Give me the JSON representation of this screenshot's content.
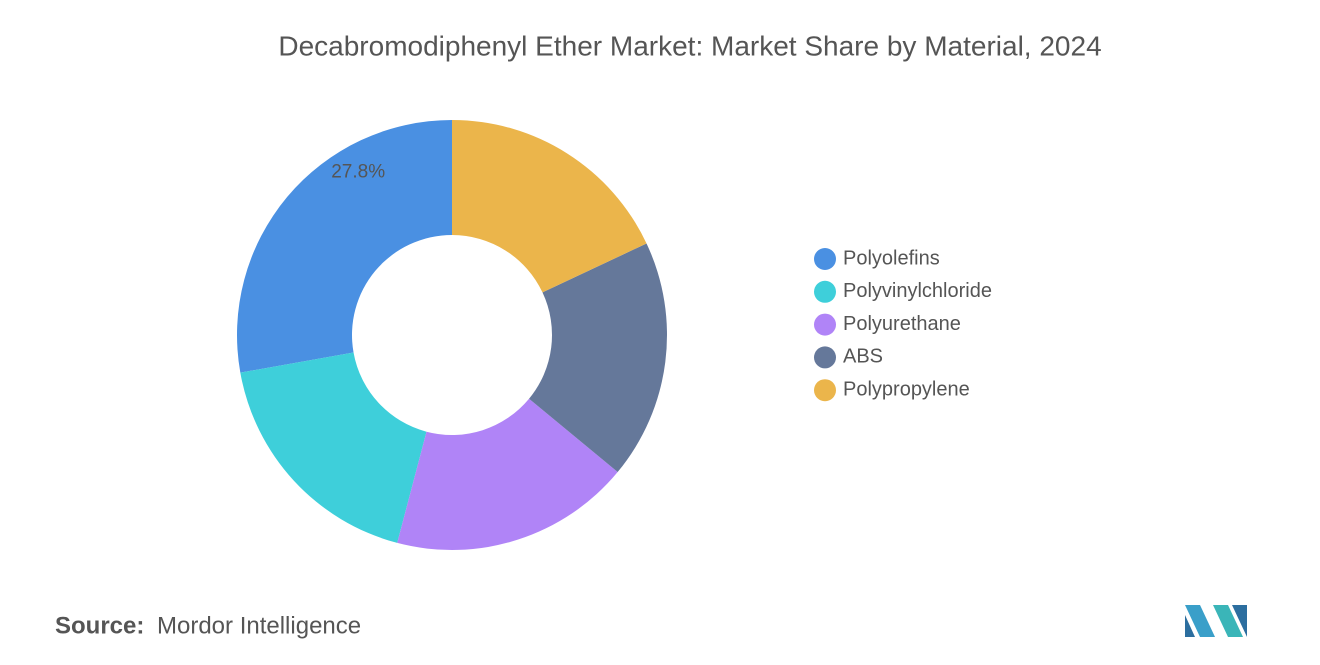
{
  "chart_data": {
    "type": "donut",
    "title": "Decabromodiphenyl Ether Market: Market Share by Material, 2024",
    "categories": [
      "Polyolefins",
      "Polyvinylchloride",
      "Polyurethane",
      "ABS",
      "Polypropylene"
    ],
    "values": [
      27.8,
      18.1,
      18.1,
      18.0,
      18.0
    ],
    "value_labels": [
      "27.8%",
      null,
      null,
      null,
      null
    ],
    "colors": [
      "#4a90e2",
      "#3ecfda",
      "#b084f7",
      "#65789a",
      "#ebb54b"
    ],
    "legend": "right"
  },
  "footer": {
    "source_label": "Source:",
    "source": "Mordor Intelligence"
  }
}
